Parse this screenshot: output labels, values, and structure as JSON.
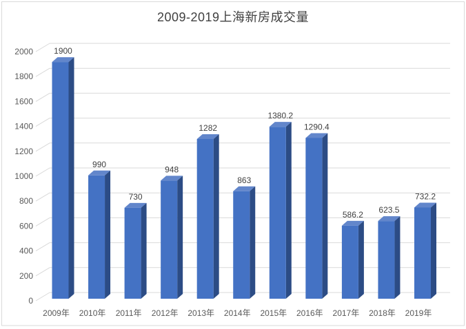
{
  "page": {
    "window_title": "2009-2019上海新房成交量 chart"
  },
  "chart_data": {
    "type": "bar",
    "style": "3d-column",
    "title": "2009-2019上海新房成交量",
    "categories": [
      "2009年",
      "2010年",
      "2011年",
      "2012年",
      "2013年",
      "2014年",
      "2015年",
      "2016年",
      "2017年",
      "2018年",
      "2019年"
    ],
    "values": [
      1900,
      990,
      730,
      948,
      1282,
      863,
      1380.2,
      1290.4,
      586.2,
      623.5,
      732.2
    ],
    "value_labels": [
      "1900",
      "990",
      "730",
      "948",
      "1282",
      "863",
      "1380.2",
      "1290.4",
      "586.2",
      "623.5",
      "732.2"
    ],
    "xlabel": "",
    "ylabel": "",
    "ylim": [
      0,
      2000
    ],
    "ytick_step": 200,
    "ytick_labels": [
      "0",
      "200",
      "400",
      "600",
      "800",
      "1000",
      "1200",
      "1400",
      "1600",
      "1800",
      "2000"
    ],
    "grid": true,
    "legend_position": "none",
    "colors": {
      "bar_front": "#4472c4",
      "bar_side": "#2c4c85",
      "bar_top": "#6286cb",
      "gridline": "#d9d9d9",
      "axis_text": "#595959",
      "value_text": "#404040",
      "title_text": "#404040",
      "chart_border": "#d9d9d9",
      "background": "#ffffff"
    }
  }
}
